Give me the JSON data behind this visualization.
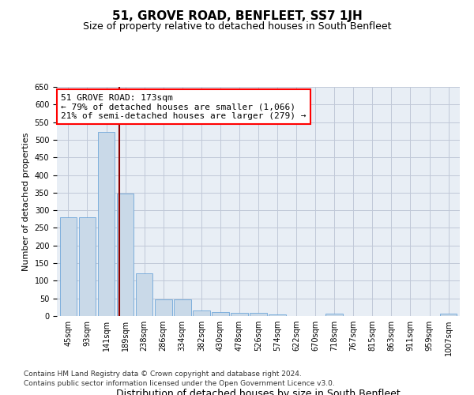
{
  "title": "51, GROVE ROAD, BENFLEET, SS7 1JH",
  "subtitle": "Size of property relative to detached houses in South Benfleet",
  "xlabel": "Distribution of detached houses by size in South Benfleet",
  "ylabel": "Number of detached properties",
  "categories": [
    "45sqm",
    "93sqm",
    "141sqm",
    "189sqm",
    "238sqm",
    "286sqm",
    "334sqm",
    "382sqm",
    "430sqm",
    "478sqm",
    "526sqm",
    "574sqm",
    "622sqm",
    "670sqm",
    "718sqm",
    "767sqm",
    "815sqm",
    "863sqm",
    "911sqm",
    "959sqm",
    "1007sqm"
  ],
  "values": [
    281,
    281,
    523,
    347,
    120,
    47,
    47,
    16,
    11,
    10,
    8,
    5,
    0,
    0,
    7,
    0,
    0,
    0,
    0,
    0,
    6
  ],
  "bar_color": "#c9d9e8",
  "bar_edge_color": "#5b9bd5",
  "grid_color": "#c0c8d8",
  "background_color": "#e8eef5",
  "annotation_line1": "51 GROVE ROAD: 173sqm",
  "annotation_line2": "← 79% of detached houses are smaller (1,066)",
  "annotation_line3": "21% of semi-detached houses are larger (279) →",
  "annotation_box_color": "white",
  "annotation_box_edge": "red",
  "vline_color": "#8b0000",
  "ylim": [
    0,
    650
  ],
  "yticks": [
    0,
    50,
    100,
    150,
    200,
    250,
    300,
    350,
    400,
    450,
    500,
    550,
    600,
    650
  ],
  "footer_line1": "Contains HM Land Registry data © Crown copyright and database right 2024.",
  "footer_line2": "Contains public sector information licensed under the Open Government Licence v3.0.",
  "title_fontsize": 11,
  "subtitle_fontsize": 9,
  "ylabel_fontsize": 8,
  "xlabel_fontsize": 9,
  "tick_fontsize": 7,
  "annotation_fontsize": 8
}
